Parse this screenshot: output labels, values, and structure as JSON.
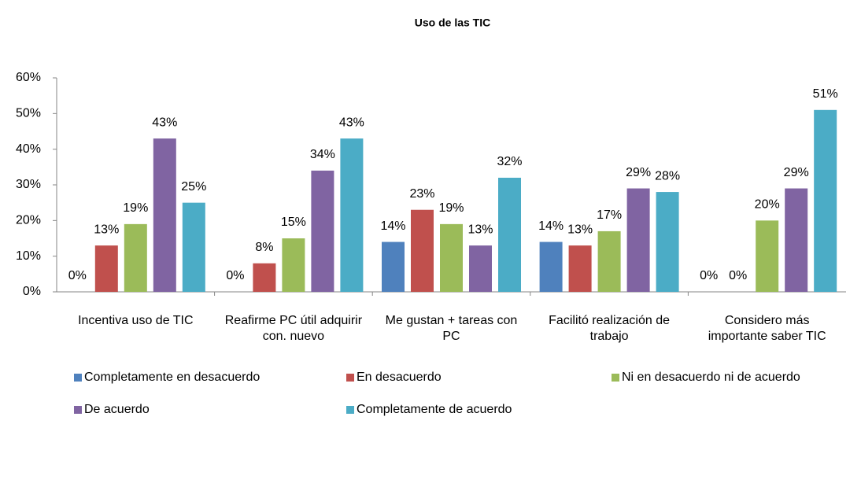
{
  "chart_data": {
    "type": "bar",
    "title": "Uso de las TIC",
    "categories": [
      "Incentiva uso de TIC",
      "Reafirme PC útil adquirir con. nuevo",
      "Me gustan + tareas con PC",
      "Facilitó realización de trabajo",
      "Considero más importante saber TIC"
    ],
    "series": [
      {
        "name": "Completamente en desacuerdo",
        "color": "#4f81bd",
        "values": [
          0,
          0,
          14,
          14,
          0
        ],
        "value_labels": [
          "0%",
          "0%",
          "14%",
          "14%",
          "0%"
        ]
      },
      {
        "name": "En desacuerdo",
        "color": "#c0504d",
        "values": [
          13,
          8,
          23,
          13,
          0
        ],
        "value_labels": [
          "13%",
          "8%",
          "23%",
          "13%",
          "0%"
        ]
      },
      {
        "name": "Ni en desacuerdo ni de acuerdo",
        "color": "#9bbb59",
        "values": [
          19,
          15,
          19,
          17,
          20
        ],
        "value_labels": [
          "19%",
          "15%",
          "19%",
          "17%",
          "20%"
        ]
      },
      {
        "name": "De acuerdo",
        "color": "#8064a2",
        "values": [
          43,
          34,
          13,
          29,
          29
        ],
        "value_labels": [
          "43%",
          "34%",
          "13%",
          "29%",
          "29%"
        ]
      },
      {
        "name": "Completamente de acuerdo",
        "color": "#4bacc6",
        "values": [
          25,
          43,
          32,
          28,
          51
        ],
        "value_labels": [
          "25%",
          "43%",
          "32%",
          "28%",
          "51%"
        ]
      }
    ],
    "ylim": [
      0,
      60
    ],
    "yticks": [
      {
        "value": 0,
        "label": "0%"
      },
      {
        "value": 10,
        "label": "10%"
      },
      {
        "value": 20,
        "label": "20%"
      },
      {
        "value": 30,
        "label": "30%"
      },
      {
        "value": 40,
        "label": "40%"
      },
      {
        "value": 50,
        "label": "50%"
      },
      {
        "value": 60,
        "label": "60%"
      }
    ],
    "legend": "bottom"
  }
}
